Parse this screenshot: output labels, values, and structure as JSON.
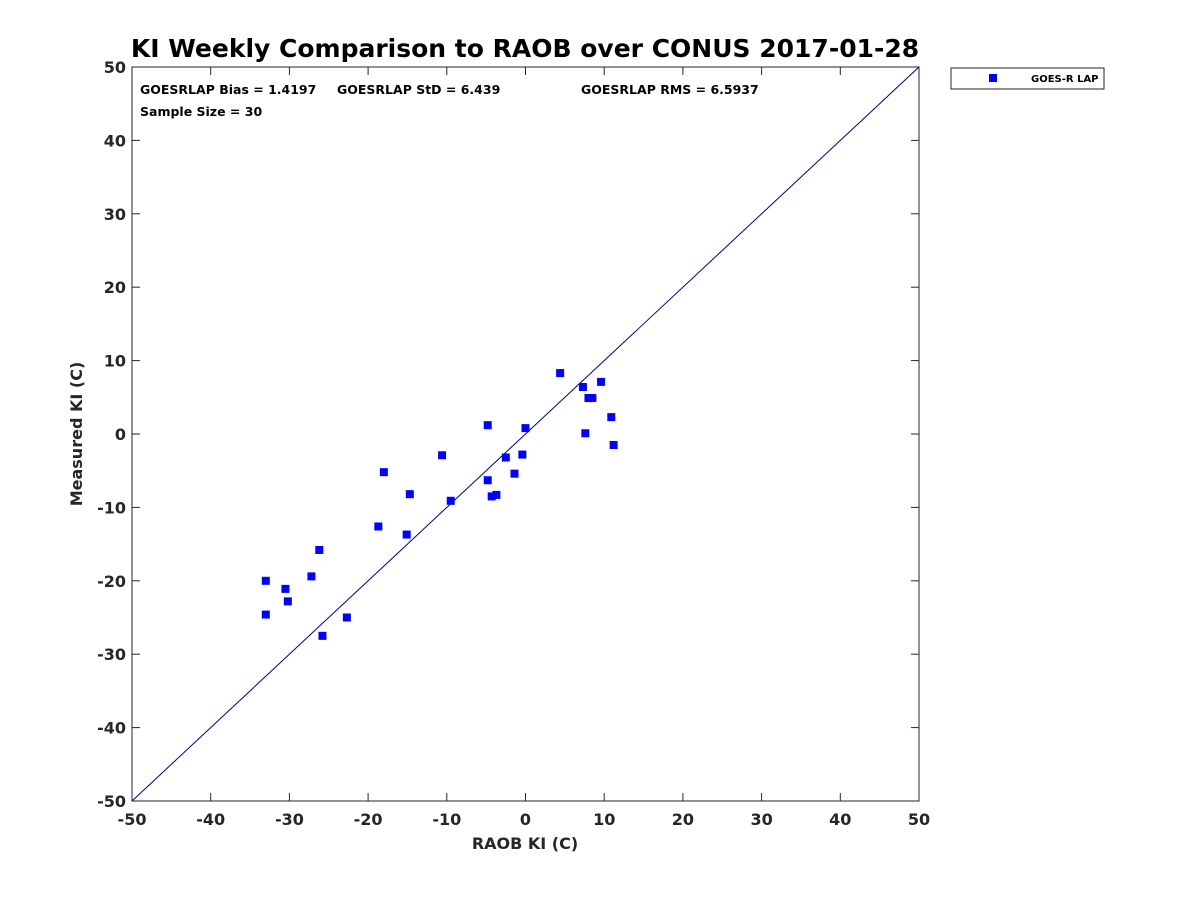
{
  "chart_data": {
    "type": "scatter",
    "title": "KI Weekly Comparison to RAOB over CONUS 2017-01-28",
    "xlabel": "RAOB KI (C)",
    "ylabel": "Measured KI (C)",
    "xlim": [
      -50,
      50
    ],
    "ylim": [
      -50,
      50
    ],
    "xticks": [
      -50,
      -40,
      -30,
      -20,
      -10,
      0,
      10,
      20,
      30,
      40,
      50
    ],
    "yticks": [
      -50,
      -40,
      -30,
      -20,
      -10,
      0,
      10,
      20,
      30,
      40,
      50
    ],
    "grid": false,
    "legend": {
      "placement": "outside-top-right",
      "entries": [
        "GOES-R LAP"
      ]
    },
    "reference_line": {
      "name": "1:1 line",
      "x": [
        -50,
        50
      ],
      "y": [
        -50,
        50
      ]
    },
    "colors": {
      "series": "#0000ff",
      "reference_line": "#00008b",
      "axis": "#262626"
    },
    "annotations": {
      "bias": "GOESRLAP Bias = 1.4197",
      "std": "GOESRLAP StD = 6.439",
      "rms": "GOESRLAP RMS = 6.5937",
      "sample_size": "Sample Size = 30"
    },
    "series": [
      {
        "name": "GOES-R LAP",
        "marker": "square",
        "points": [
          [
            -33.0,
            -20.0
          ],
          [
            -33.0,
            -24.6
          ],
          [
            -30.5,
            -21.1
          ],
          [
            -30.2,
            -22.8
          ],
          [
            -27.2,
            -19.4
          ],
          [
            -26.2,
            -15.8
          ],
          [
            -25.8,
            -27.5
          ],
          [
            -22.7,
            -25.0
          ],
          [
            -18.7,
            -12.6
          ],
          [
            -18.0,
            -5.2
          ],
          [
            -15.1,
            -13.7
          ],
          [
            -14.7,
            -8.2
          ],
          [
            -10.6,
            -2.9
          ],
          [
            -9.5,
            -9.1
          ],
          [
            -4.8,
            1.2
          ],
          [
            -4.8,
            -6.3
          ],
          [
            -4.3,
            -8.5
          ],
          [
            -3.7,
            -8.3
          ],
          [
            -2.5,
            -3.2
          ],
          [
            -1.4,
            -5.4
          ],
          [
            -0.4,
            -2.8
          ],
          [
            0.0,
            0.8
          ],
          [
            4.4,
            8.3
          ],
          [
            7.3,
            6.4
          ],
          [
            7.6,
            0.1
          ],
          [
            8.0,
            4.9
          ],
          [
            8.5,
            4.9
          ],
          [
            9.6,
            7.1
          ],
          [
            10.9,
            2.3
          ],
          [
            11.2,
            -1.5
          ]
        ]
      }
    ]
  }
}
